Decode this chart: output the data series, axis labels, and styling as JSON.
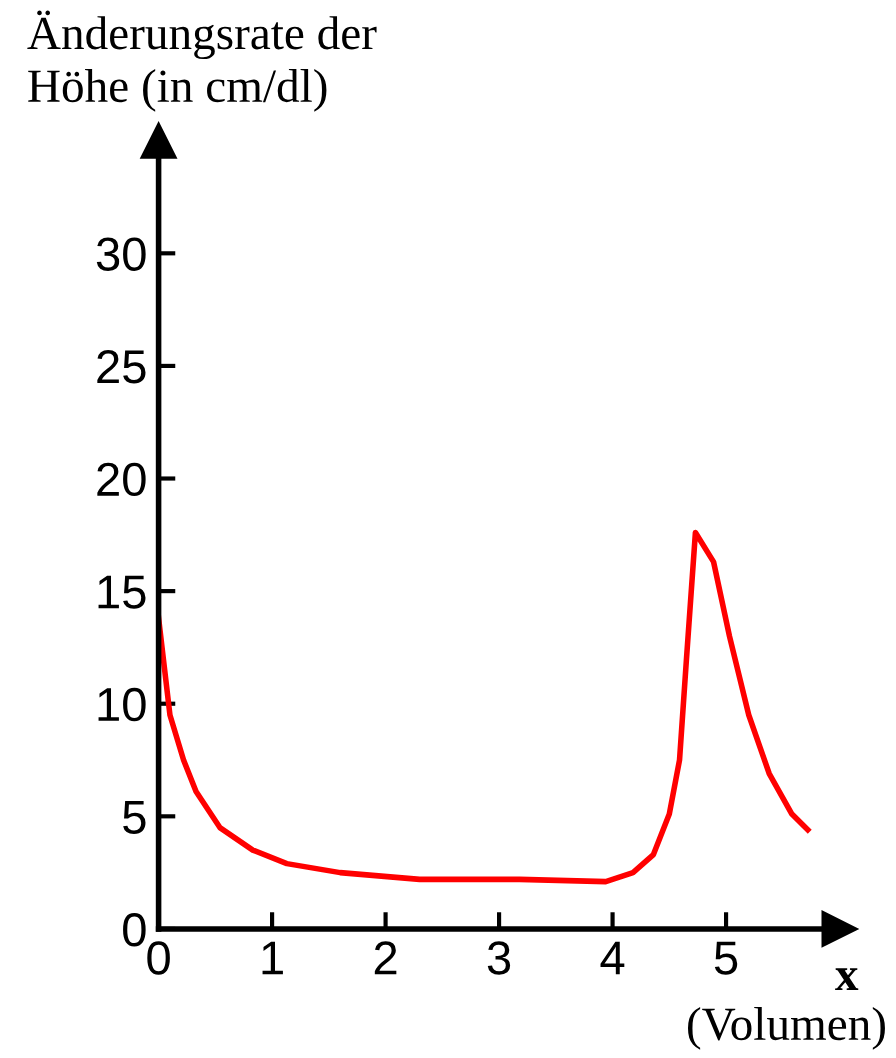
{
  "chart_data": {
    "type": "line",
    "ylabel": "Änderungsrate der\nHöhe (in cm/dl)",
    "xlabel": "x",
    "annotations": [
      "(Volumen)"
    ],
    "x": [
      0,
      0.1,
      0.22,
      0.33,
      0.54,
      0.83,
      1.13,
      1.6,
      2.3,
      3.18,
      3.94,
      4.18,
      4.36,
      4.5,
      4.59,
      4.65,
      4.73,
      4.89,
      5.03,
      5.2,
      5.38,
      5.58,
      5.72
    ],
    "series": [
      {
        "color": "#ff0000",
        "values": [
          13.8,
          9.5,
          7.5,
          6.1,
          4.5,
          3.5,
          2.9,
          2.5,
          2.2,
          2.2,
          2.1,
          2.5,
          3.3,
          5.1,
          7.5,
          11.9,
          17.6,
          16.3,
          13.0,
          9.5,
          6.9,
          5.1,
          4.4
        ]
      }
    ],
    "xlim": [
      0,
      6
    ],
    "ylim": [
      0,
      35
    ],
    "xticks": [
      0,
      1,
      2,
      3,
      4,
      5
    ],
    "yticks": [
      0,
      5,
      10,
      15,
      20,
      25,
      30
    ],
    "grid": false,
    "legend": false,
    "marker": "none",
    "line_style": "solid"
  }
}
